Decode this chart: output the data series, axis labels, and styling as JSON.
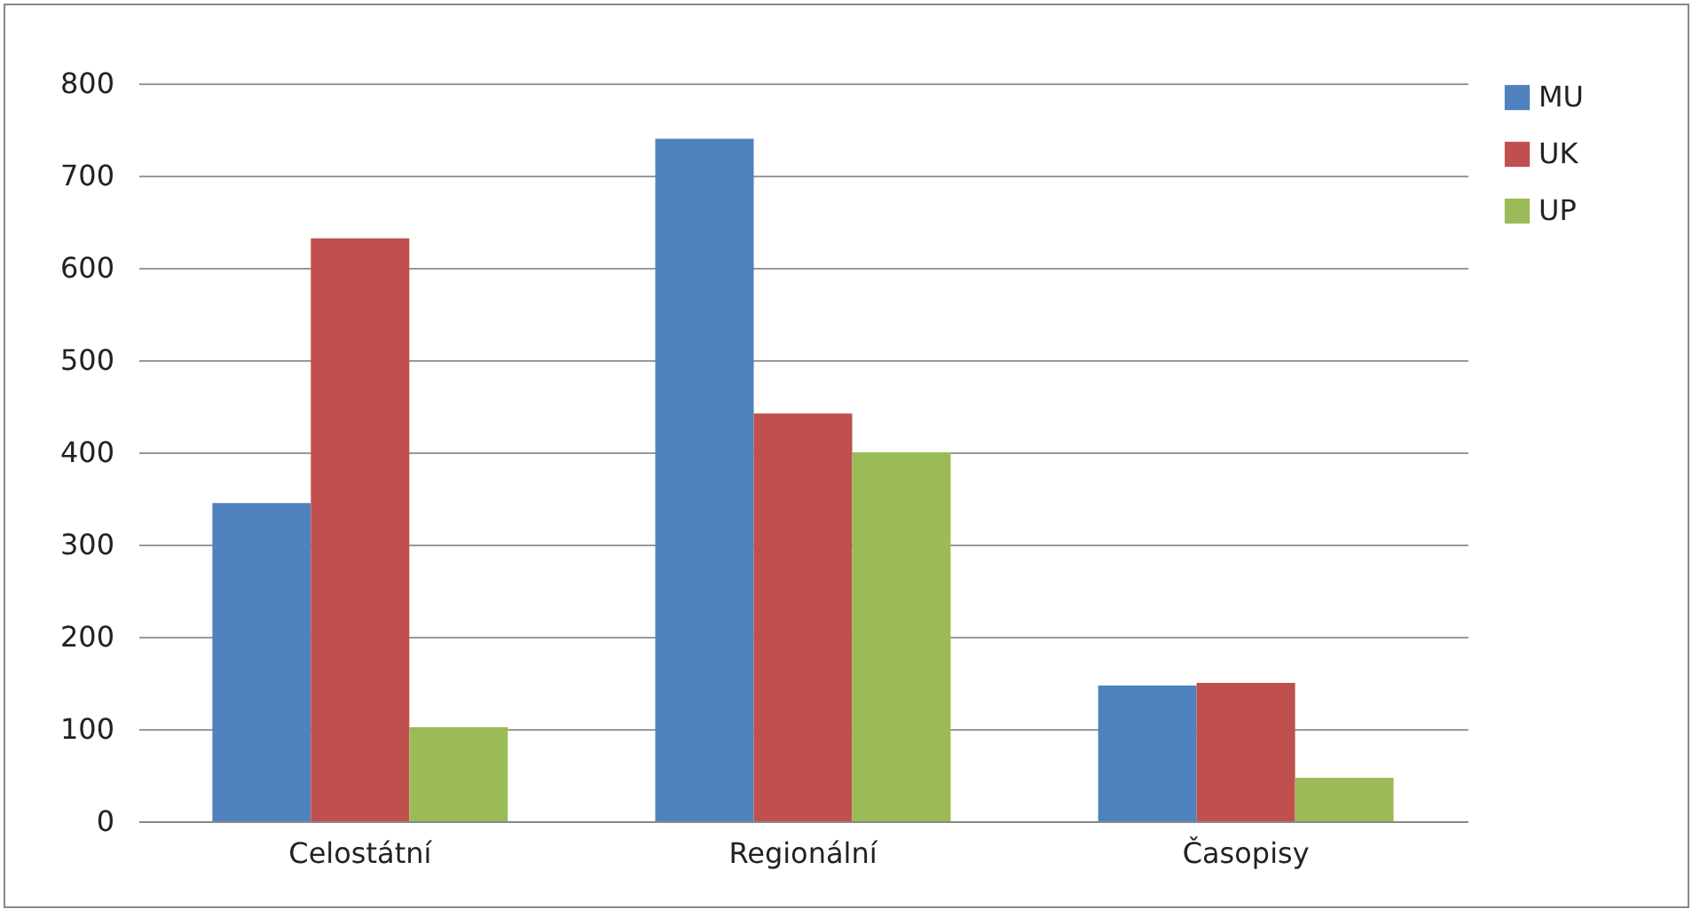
{
  "chart_data": {
    "type": "bar",
    "categories": [
      "Celostátní",
      "Regionální",
      "Časopisy"
    ],
    "series": [
      {
        "name": "MU",
        "color": "#4f81bd",
        "values": [
          345,
          740,
          147
        ]
      },
      {
        "name": "UK",
        "color": "#c0504d",
        "values": [
          632,
          442,
          150
        ]
      },
      {
        "name": "UP",
        "color": "#9bbb59",
        "values": [
          102,
          400,
          47
        ]
      }
    ],
    "ylim": [
      0,
      800
    ],
    "yticks": [
      0,
      100,
      200,
      300,
      400,
      500,
      600,
      700,
      800
    ],
    "grid": "y",
    "legend": "right"
  }
}
